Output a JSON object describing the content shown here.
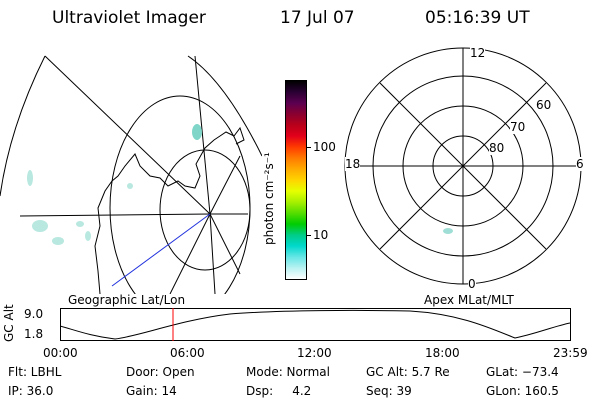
{
  "header": {
    "title": "Ultraviolet Imager",
    "date": "17 Jul 07",
    "time": "05:16:39 UT"
  },
  "colorbar": {
    "unit_label": "photon cm⁻²s⁻¹",
    "ticks": [
      "100",
      "10"
    ],
    "colors": [
      "#000000",
      "#2a0033",
      "#5a0050",
      "#8a0030",
      "#b8001a",
      "#e2001a",
      "#ff3a00",
      "#ff7a00",
      "#ffaa00",
      "#ffd400",
      "#e6ff00",
      "#a8f000",
      "#55dd00",
      "#00cc00",
      "#00cc88",
      "#00d8cc",
      "#66e6e6",
      "#b8f2f2",
      "#ffffff"
    ]
  },
  "left_panel": {
    "label": "Geographic Lat/Lon"
  },
  "right_panel": {
    "label": "Apex MLat/MLT",
    "mlt_labels": {
      "top": "12",
      "left": "18",
      "right": "6",
      "bottom": "0"
    },
    "lat_labels": [
      "60",
      "70",
      "80"
    ]
  },
  "altitude_plot": {
    "ylabel": "GC Alt",
    "yticks": [
      "9.0",
      "1.8"
    ],
    "xticks": [
      "00:00",
      "06:00",
      "12:00",
      "18:00",
      "23:59"
    ],
    "marker_color": "#ff0000"
  },
  "info": {
    "filter": "Flt: LBHL",
    "ip": "IP: 36.0",
    "door": "Door: Open",
    "gain": "Gain: 14",
    "mode": "Mode: Normal",
    "dsp": "Dsp:     4.2",
    "gc_alt": "GC Alt: 5.7 Re",
    "seq": "Seq: 39",
    "glat": "GLat: −73.4",
    "glon": "GLon: 160.5"
  }
}
